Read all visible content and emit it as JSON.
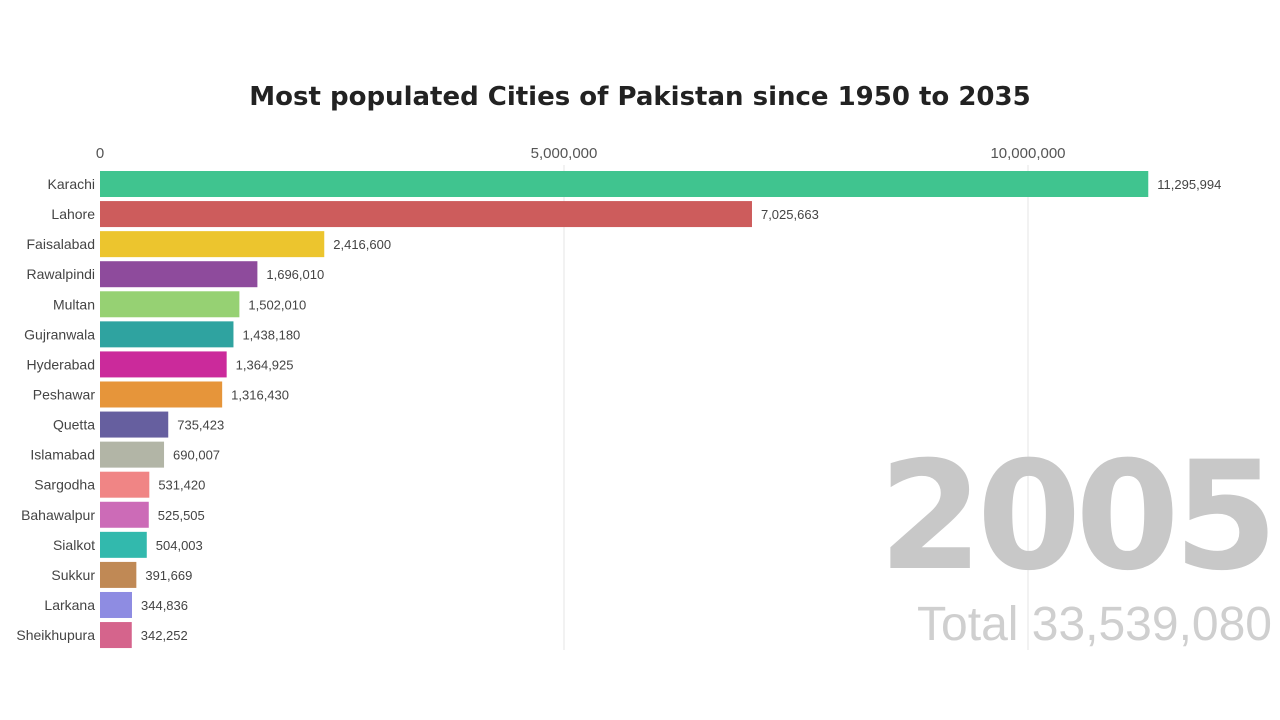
{
  "chart_data": {
    "type": "bar",
    "orientation": "horizontal",
    "title": "Most populated Cities of Pakistan since 1950 to 2035",
    "categories": [
      "Karachi",
      "Lahore",
      "Faisalabad",
      "Rawalpindi",
      "Multan",
      "Gujranwala",
      "Hyderabad",
      "Peshawar",
      "Quetta",
      "Islamabad",
      "Sargodha",
      "Bahawalpur",
      "Sialkot",
      "Sukkur",
      "Larkana",
      "Sheikhupura"
    ],
    "values": [
      11295994,
      7025663,
      2416600,
      1696010,
      1502010,
      1438180,
      1364925,
      1316430,
      735423,
      690007,
      531420,
      525505,
      504003,
      391669,
      344836,
      342252
    ],
    "value_labels": [
      "11,295,994",
      "7,025,663",
      "2,416,600",
      "1,696,010",
      "1,502,010",
      "1,438,180",
      "1,364,925",
      "1,316,430",
      "735,423",
      "690,007",
      "531,420",
      "525,505",
      "504,003",
      "391,669",
      "344,836",
      "342,252"
    ],
    "colors": [
      "#40c48f",
      "#cd5c5c",
      "#ecc52e",
      "#8e4b9c",
      "#96d173",
      "#2fa3a0",
      "#cb2a9b",
      "#e6953a",
      "#665f9f",
      "#b2b5a6",
      "#f08585",
      "#cc6bb7",
      "#32b9ad",
      "#c08955",
      "#8e8ce2",
      "#d5648c"
    ],
    "xaxis_ticks": [
      0,
      5000000,
      10000000
    ],
    "xaxis_tick_labels": [
      "0",
      "5,000,000",
      "10,000,000"
    ],
    "xlim": [
      0,
      11295994
    ],
    "grid": true,
    "year": "2005",
    "total": "Total 33,539,080"
  }
}
